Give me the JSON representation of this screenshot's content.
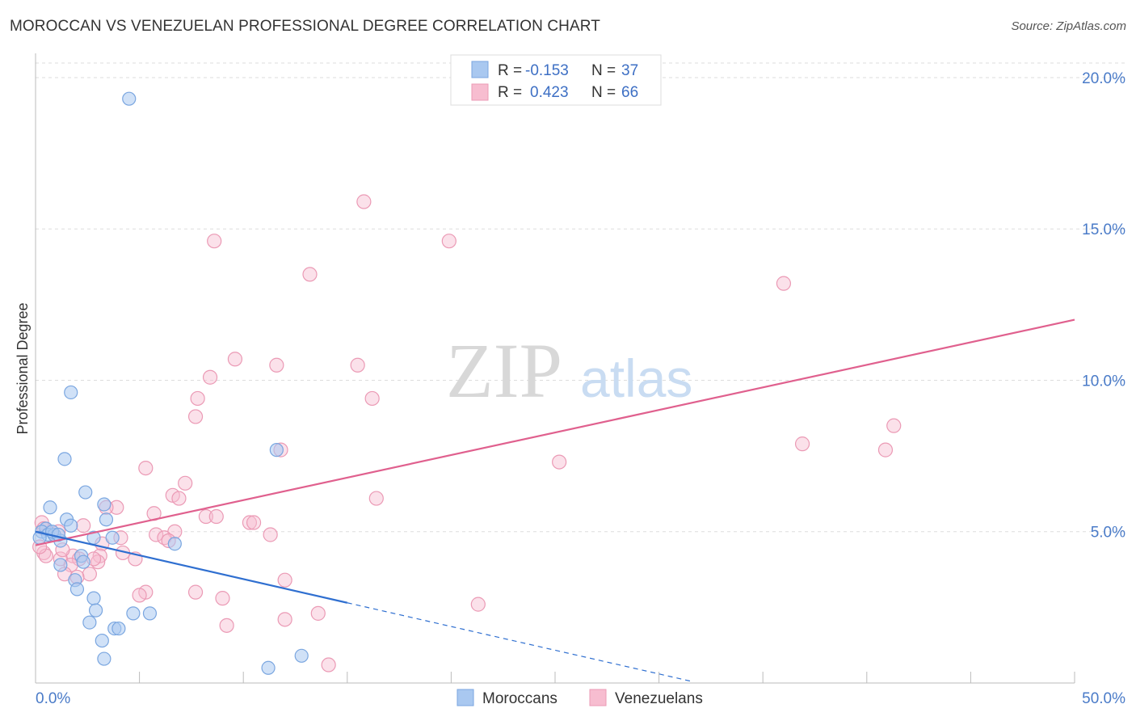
{
  "title": "MOROCCAN VS VENEZUELAN PROFESSIONAL DEGREE CORRELATION CHART",
  "source": "Source: ZipAtlas.com",
  "watermark": {
    "zip": "ZIP",
    "atlas": "atlas"
  },
  "colors": {
    "moroccan_fill": "#a9c8f0",
    "moroccan_stroke": "#7aa6e0",
    "moroccan_line": "#2f6fd0",
    "venezuelan_fill": "#f7bdd0",
    "venezuelan_stroke": "#eb9ab5",
    "venezuelan_line": "#e0608e",
    "grid": "#dddddd",
    "tick_text": "#4a7bc8"
  },
  "legend": {
    "rows": [
      {
        "r_label": "R =",
        "r_value": "-0.153",
        "n_label": "N =",
        "n_value": "37"
      },
      {
        "r_label": "R =",
        "r_value": "0.423",
        "n_label": "N =",
        "n_value": "66"
      }
    ]
  },
  "chart_data": {
    "type": "scatter",
    "title": "MOROCCAN VS VENEZUELAN PROFESSIONAL DEGREE CORRELATION CHART",
    "xlabel": "",
    "ylabel": "Professional Degree",
    "xlim": [
      0,
      50
    ],
    "ylim": [
      0,
      20.8
    ],
    "x_tick_labels": [
      "0.0%",
      "50.0%"
    ],
    "y_ticks": [
      5,
      10,
      15,
      20
    ],
    "y_tick_labels": [
      "5.0%",
      "10.0%",
      "15.0%",
      "20.0%"
    ],
    "series": [
      {
        "name": "Moroccans",
        "r": -0.153,
        "n": 37,
        "trend": {
          "x0": 0,
          "y0": 5.0,
          "x1": 15,
          "y1": 2.65,
          "dash_x_end": 31.5
        },
        "points": [
          [
            4.5,
            19.3
          ],
          [
            1.7,
            9.6
          ],
          [
            1.4,
            7.4
          ],
          [
            11.6,
            7.7
          ],
          [
            0.7,
            5.8
          ],
          [
            2.4,
            6.3
          ],
          [
            3.3,
            5.9
          ],
          [
            3.4,
            5.4
          ],
          [
            1.5,
            5.4
          ],
          [
            0.5,
            5.1
          ],
          [
            1.7,
            5.2
          ],
          [
            0.3,
            5.0
          ],
          [
            0.6,
            4.9
          ],
          [
            0.9,
            4.9
          ],
          [
            0.2,
            4.8
          ],
          [
            1.2,
            4.7
          ],
          [
            2.8,
            4.8
          ],
          [
            3.7,
            4.8
          ],
          [
            6.7,
            4.6
          ],
          [
            2.2,
            4.2
          ],
          [
            1.2,
            3.9
          ],
          [
            2.3,
            4.0
          ],
          [
            1.9,
            3.4
          ],
          [
            2.0,
            3.1
          ],
          [
            2.8,
            2.8
          ],
          [
            2.9,
            2.4
          ],
          [
            4.7,
            2.3
          ],
          [
            5.5,
            2.3
          ],
          [
            2.6,
            2.0
          ],
          [
            3.8,
            1.8
          ],
          [
            4.0,
            1.8
          ],
          [
            3.2,
            1.4
          ],
          [
            12.8,
            0.9
          ],
          [
            3.3,
            0.8
          ],
          [
            11.2,
            0.5
          ],
          [
            0.8,
            5.0
          ],
          [
            1.1,
            4.9
          ]
        ]
      },
      {
        "name": "Venezuelans",
        "r": 0.423,
        "n": 66,
        "trend": {
          "x0": 0,
          "y0": 4.55,
          "x1": 50,
          "y1": 12.0
        },
        "points": [
          [
            15.8,
            15.9
          ],
          [
            8.6,
            14.6
          ],
          [
            19.9,
            14.6
          ],
          [
            13.2,
            13.5
          ],
          [
            36.0,
            13.2
          ],
          [
            9.6,
            10.7
          ],
          [
            11.6,
            10.5
          ],
          [
            15.5,
            10.5
          ],
          [
            8.4,
            10.1
          ],
          [
            16.2,
            9.4
          ],
          [
            7.8,
            9.4
          ],
          [
            7.7,
            8.8
          ],
          [
            41.3,
            8.5
          ],
          [
            36.9,
            7.9
          ],
          [
            40.9,
            7.7
          ],
          [
            11.8,
            7.7
          ],
          [
            25.2,
            7.3
          ],
          [
            5.3,
            7.1
          ],
          [
            7.2,
            6.6
          ],
          [
            6.6,
            6.2
          ],
          [
            6.9,
            6.1
          ],
          [
            16.4,
            6.1
          ],
          [
            3.9,
            5.8
          ],
          [
            3.4,
            5.8
          ],
          [
            5.7,
            5.6
          ],
          [
            8.2,
            5.5
          ],
          [
            8.7,
            5.5
          ],
          [
            10.3,
            5.3
          ],
          [
            10.5,
            5.3
          ],
          [
            2.3,
            5.2
          ],
          [
            0.3,
            5.3
          ],
          [
            0.4,
            5.1
          ],
          [
            1.1,
            5.0
          ],
          [
            5.8,
            4.9
          ],
          [
            6.7,
            5.0
          ],
          [
            11.3,
            4.9
          ],
          [
            4.1,
            4.8
          ],
          [
            6.2,
            4.8
          ],
          [
            6.4,
            4.7
          ],
          [
            3.2,
            4.6
          ],
          [
            1.8,
            4.2
          ],
          [
            2.1,
            4.1
          ],
          [
            3.1,
            4.2
          ],
          [
            4.2,
            4.3
          ],
          [
            0.4,
            4.3
          ],
          [
            0.5,
            4.2
          ],
          [
            1.2,
            4.1
          ],
          [
            3.0,
            4.0
          ],
          [
            4.8,
            4.1
          ],
          [
            2.8,
            4.1
          ],
          [
            1.7,
            3.9
          ],
          [
            1.4,
            3.6
          ],
          [
            2.6,
            3.6
          ],
          [
            2.0,
            3.5
          ],
          [
            12.0,
            3.4
          ],
          [
            5.3,
            3.0
          ],
          [
            7.7,
            3.0
          ],
          [
            5.0,
            2.9
          ],
          [
            9.0,
            2.8
          ],
          [
            21.3,
            2.6
          ],
          [
            13.6,
            2.3
          ],
          [
            12.0,
            2.1
          ],
          [
            9.2,
            1.9
          ],
          [
            14.1,
            0.6
          ],
          [
            0.2,
            4.5
          ],
          [
            1.3,
            4.4
          ]
        ]
      }
    ]
  },
  "bottom_legend": [
    {
      "label": "Moroccans"
    },
    {
      "label": "Venezuelans"
    }
  ]
}
